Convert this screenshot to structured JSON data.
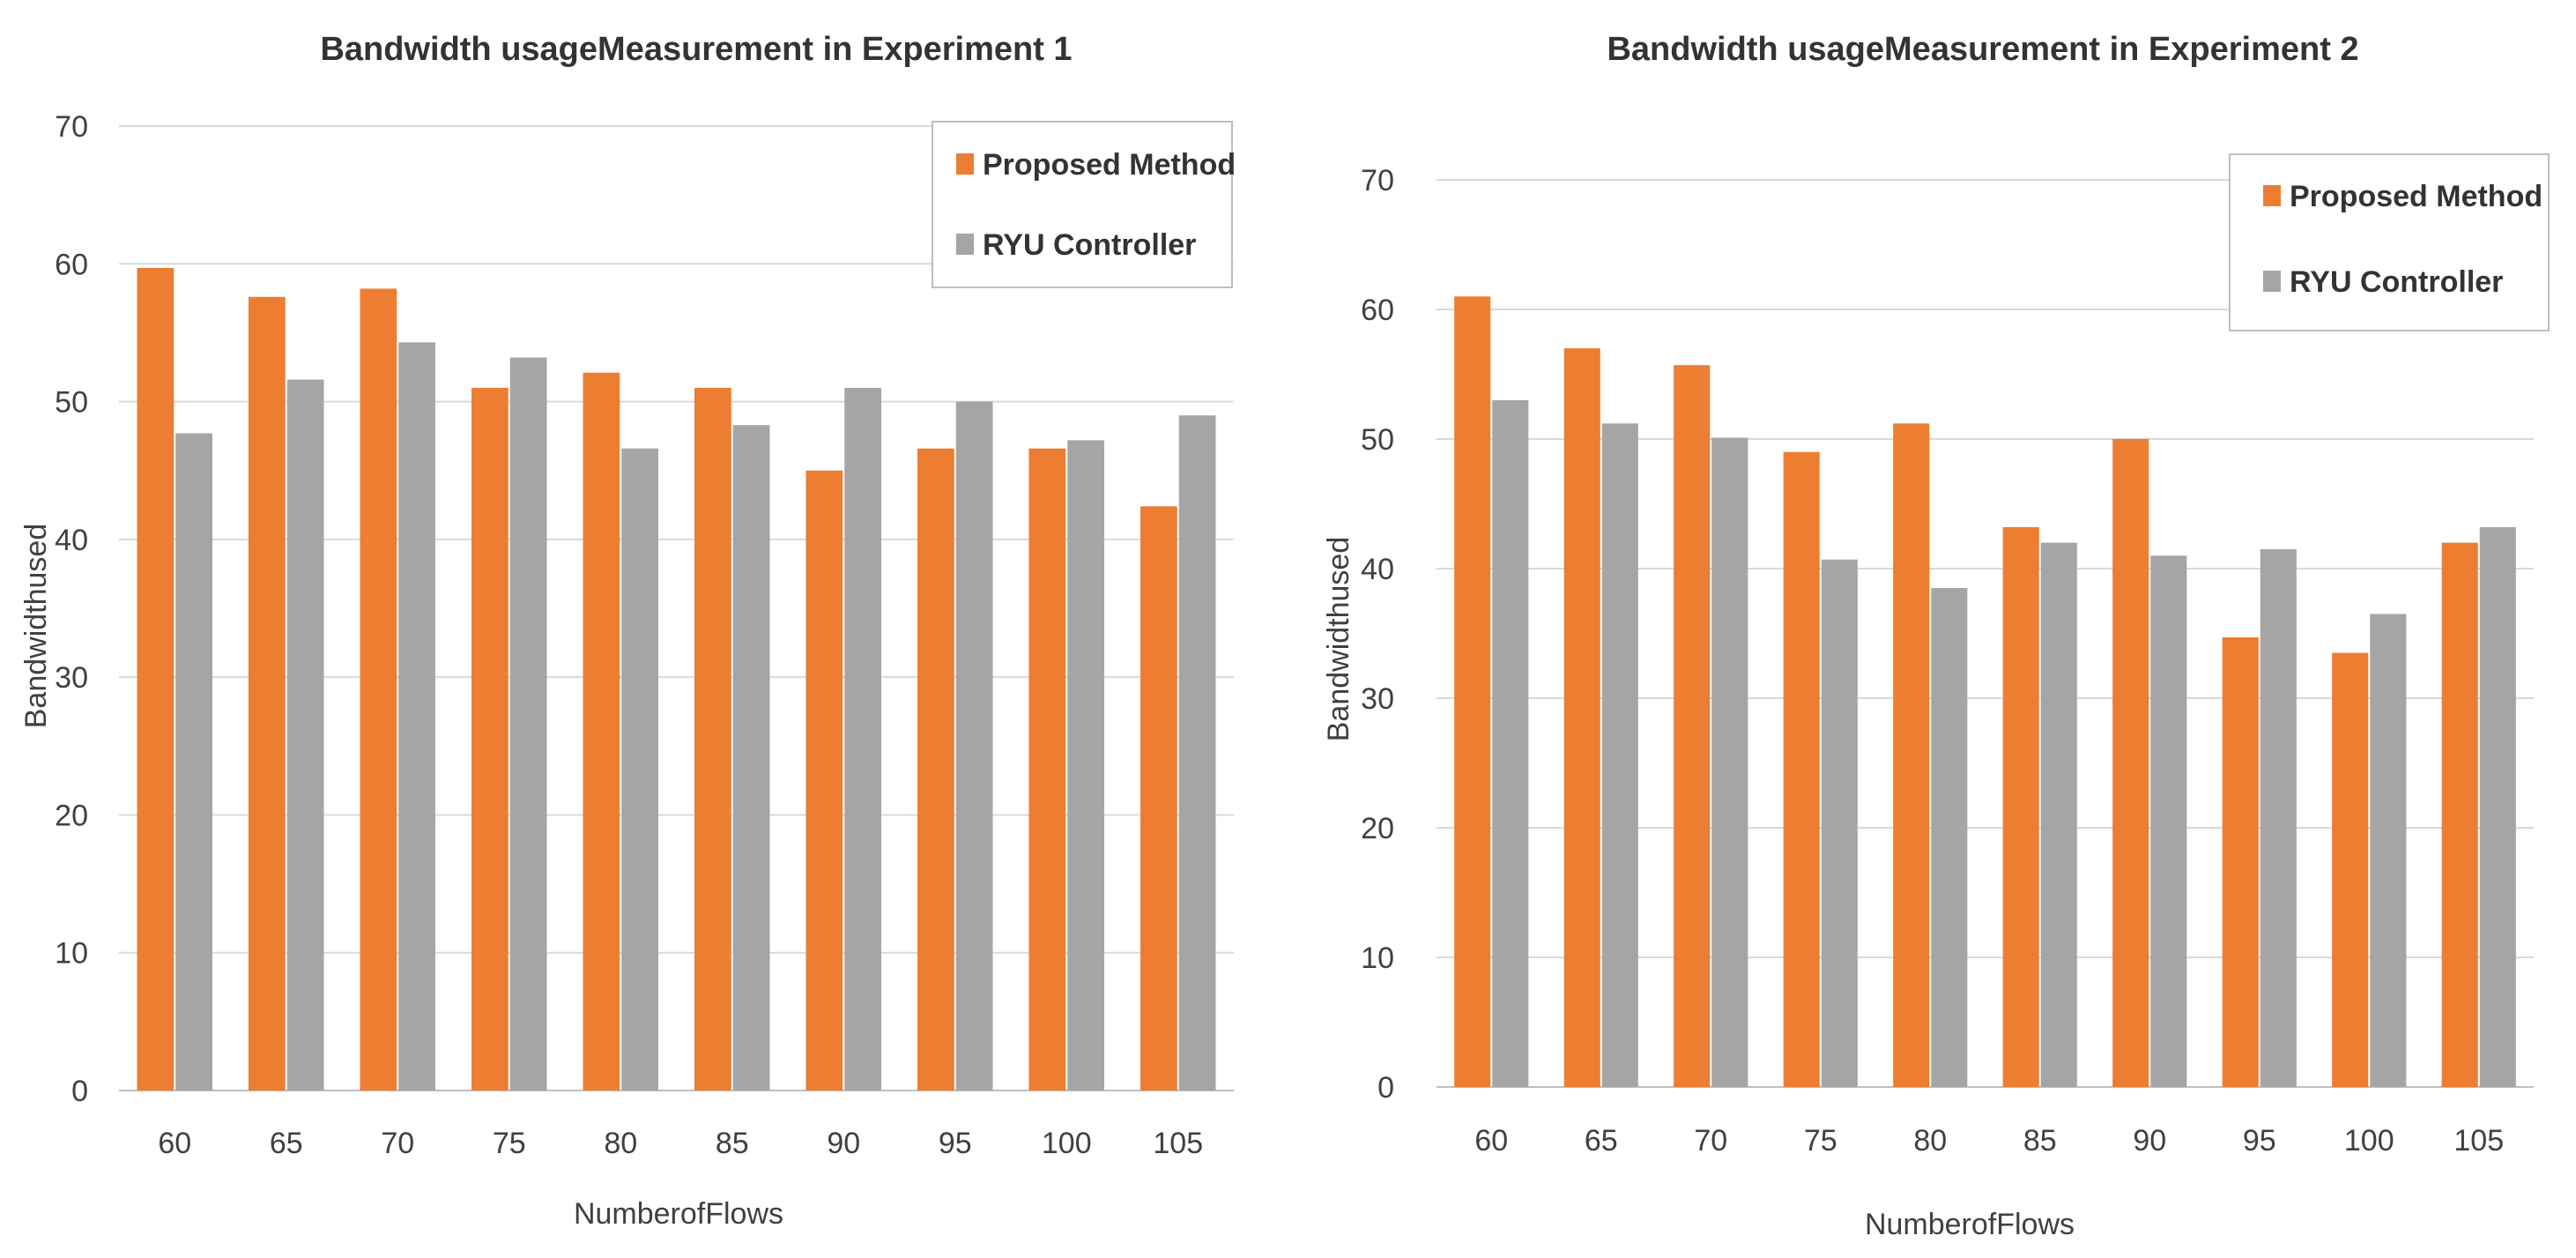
{
  "colors": {
    "proposed": "#ED7D31",
    "ryu": "#A5A5A5",
    "grid": "#D9D9D9",
    "axis": "#BFBFBF",
    "legend_border": "#BFBFBF"
  },
  "chart_data": [
    {
      "type": "bar",
      "title": "Bandwidth usageMeasurement in Experiment 1",
      "xlabel": "NumberofFlows",
      "ylabel": "Bandwidthused",
      "ylim": [
        0,
        70
      ],
      "yticks": [
        "0",
        "10",
        "20",
        "30",
        "40",
        "50",
        "60",
        "70"
      ],
      "categories": [
        "60",
        "65",
        "70",
        "75",
        "80",
        "85",
        "90",
        "95",
        "100",
        "105"
      ],
      "legend_position": "top-right",
      "series": [
        {
          "name": "Proposed Method",
          "values": [
            59.7,
            57.6,
            58.2,
            51.0,
            52.1,
            51.0,
            45.0,
            46.6,
            46.6,
            42.4
          ]
        },
        {
          "name": "RYU Controller",
          "values": [
            47.7,
            51.6,
            54.3,
            53.2,
            46.6,
            48.3,
            51.0,
            50.0,
            47.2,
            49.0
          ]
        }
      ]
    },
    {
      "type": "bar",
      "title": "Bandwidth usageMeasurement in Experiment 2",
      "xlabel": "NumberofFlows",
      "ylabel": "Bandwidthused",
      "ylim": [
        0,
        70
      ],
      "yticks": [
        "0",
        "10",
        "20",
        "30",
        "40",
        "50",
        "60",
        "70"
      ],
      "categories": [
        "60",
        "65",
        "70",
        "75",
        "80",
        "85",
        "90",
        "95",
        "100",
        "105"
      ],
      "legend_position": "top-right",
      "series": [
        {
          "name": "Proposed Method",
          "values": [
            61.0,
            57.0,
            55.7,
            49.0,
            51.2,
            43.2,
            50.0,
            34.7,
            33.5,
            42.0
          ]
        },
        {
          "name": "RYU Controller",
          "values": [
            53.0,
            51.2,
            50.1,
            40.7,
            38.5,
            42.0,
            41.0,
            41.5,
            36.5,
            43.2
          ]
        }
      ]
    }
  ]
}
